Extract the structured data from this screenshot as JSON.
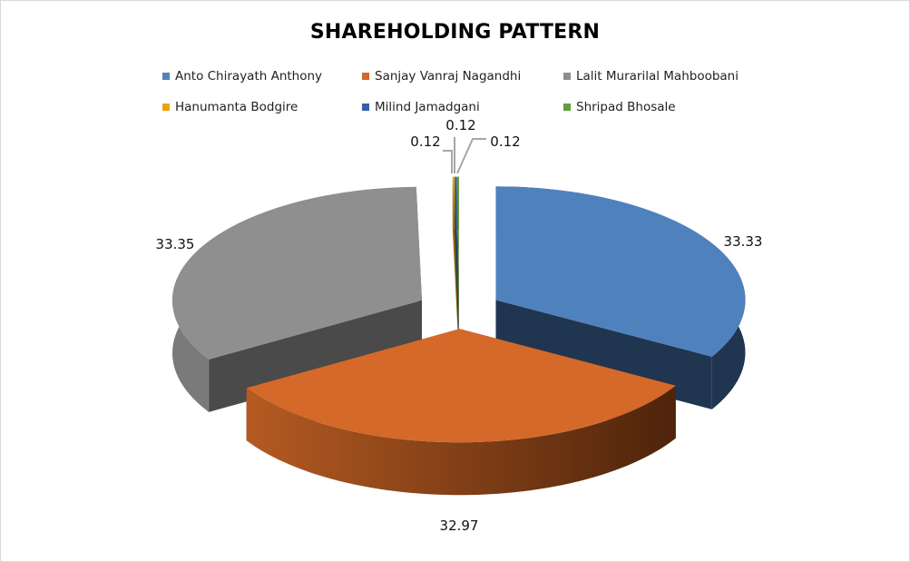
{
  "chart_data": {
    "type": "pie",
    "style": "3d-exploded",
    "title": "SHAREHOLDING PATTERN",
    "legend_position": "top",
    "slices": [
      {
        "name": "Anto Chirayath Anthony",
        "value": 33.33,
        "color": "#4f81bd",
        "label": "33.33"
      },
      {
        "name": "Sanjay Vanraj Nagandhi",
        "value": 32.97,
        "color": "#d4692a",
        "label": "32.97"
      },
      {
        "name": "Lalit Murarilal Mahboobani",
        "value": 33.35,
        "color": "#8f8f8f",
        "label": "33.35"
      },
      {
        "name": "Hanumanta Bodgire",
        "value": 0.12,
        "color": "#e6a800",
        "label": "0.12"
      },
      {
        "name": "Milind Jamadgani",
        "value": 0.12,
        "color": "#3a5fa8",
        "label": "0.12"
      },
      {
        "name": "Shripad Bhosale",
        "value": 0.12,
        "color": "#5f9e3c",
        "label": "0.12"
      }
    ]
  }
}
